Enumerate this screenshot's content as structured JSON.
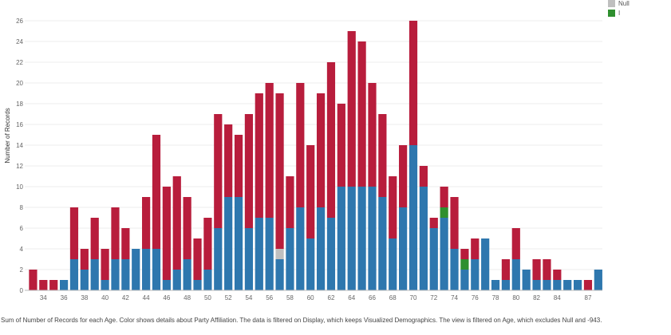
{
  "chart_data": {
    "type": "bar",
    "stacked": true,
    "ylabel": "Number of Records",
    "xlabel": "",
    "ylim": [
      0,
      26
    ],
    "ytick_values": [
      0,
      2,
      4,
      6,
      8,
      10,
      12,
      14,
      16,
      18,
      20,
      22,
      24,
      26
    ],
    "ytick_labels": [
      "0",
      "2",
      "4",
      "6",
      "8",
      "10",
      "12",
      "14",
      "16",
      "18",
      "20",
      "22",
      "24",
      "26"
    ],
    "x": [
      33,
      34,
      35,
      36,
      37,
      38,
      39,
      40,
      41,
      42,
      43,
      44,
      45,
      46,
      47,
      48,
      49,
      50,
      51,
      52,
      53,
      54,
      55,
      56,
      57,
      58,
      59,
      60,
      61,
      62,
      63,
      64,
      65,
      66,
      67,
      68,
      69,
      70,
      71,
      72,
      73,
      74,
      75,
      76,
      77,
      78,
      79,
      80,
      81,
      82,
      83,
      84,
      85,
      86,
      87,
      88
    ],
    "xtick_labels": [
      "34",
      "36",
      "38",
      "40",
      "42",
      "44",
      "46",
      "48",
      "50",
      "52",
      "54",
      "56",
      "58",
      "60",
      "62",
      "64",
      "66",
      "68",
      "70",
      "72",
      "74",
      "76",
      "78",
      "80",
      "82",
      "84",
      "87"
    ],
    "xtick_positions": [
      34,
      36,
      38,
      40,
      42,
      44,
      46,
      48,
      50,
      52,
      54,
      56,
      58,
      60,
      62,
      64,
      66,
      68,
      70,
      72,
      74,
      76,
      78,
      80,
      82,
      84,
      87
    ],
    "series": [
      {
        "color": "#2e77ae",
        "values": [
          0,
          0,
          0,
          1,
          3,
          2,
          3,
          1,
          3,
          3,
          4,
          4,
          4,
          1,
          2,
          3,
          1,
          2,
          6,
          9,
          9,
          6,
          7,
          7,
          3,
          6,
          8,
          5,
          8,
          7,
          10,
          10,
          10,
          10,
          9,
          5,
          8,
          14,
          10,
          6,
          7,
          4,
          2,
          3,
          5,
          1,
          1,
          3,
          2,
          1,
          1,
          1,
          1,
          1,
          0,
          2
        ]
      },
      {
        "color": "#bfbfbf",
        "values": [
          0,
          0,
          0,
          0,
          0,
          0,
          0,
          0,
          0,
          0,
          0,
          0,
          0,
          0,
          0,
          0,
          0,
          0,
          0,
          0,
          0,
          0,
          0,
          0,
          1,
          0,
          0,
          0,
          0,
          0,
          0,
          0,
          0,
          0,
          0,
          0,
          0,
          0,
          0,
          0,
          0,
          0,
          0,
          0,
          0,
          0,
          0,
          0,
          0,
          0,
          0,
          0,
          0,
          0,
          0,
          0
        ]
      },
      {
        "name": "I",
        "color": "#2f8f2f",
        "values": [
          0,
          0,
          0,
          0,
          0,
          0,
          0,
          0,
          0,
          0,
          0,
          0,
          0,
          0,
          0,
          0,
          0,
          0,
          0,
          0,
          0,
          0,
          0,
          0,
          0,
          0,
          0,
          0,
          0,
          0,
          0,
          0,
          0,
          0,
          0,
          0,
          0,
          0,
          0,
          0,
          1,
          0,
          1,
          0,
          0,
          0,
          0,
          0,
          0,
          0,
          0,
          0,
          0,
          0,
          0,
          0
        ]
      },
      {
        "color": "#b81d3c",
        "values": [
          2,
          1,
          1,
          0,
          5,
          2,
          4,
          3,
          5,
          3,
          0,
          5,
          11,
          9,
          9,
          6,
          4,
          5,
          11,
          7,
          6,
          11,
          12,
          13,
          15,
          5,
          12,
          9,
          11,
          15,
          8,
          15,
          14,
          10,
          8,
          6,
          6,
          12,
          2,
          1,
          2,
          5,
          1,
          2,
          0,
          0,
          2,
          3,
          0,
          2,
          2,
          1,
          0,
          0,
          1,
          0
        ]
      }
    ],
    "legend": [
      {
        "label": "Null",
        "color": "#bfbfbf"
      },
      {
        "label": "I",
        "color": "#2f8f2f"
      }
    ],
    "legend_placement": "top-right",
    "grid": true
  },
  "caption": "Sum of Number of Records for each Age.  Color shows details about Party Affiliation. The data is filtered on Display, which keeps Visualized Demographics. The view is filtered on Age, which excludes Null and -943."
}
